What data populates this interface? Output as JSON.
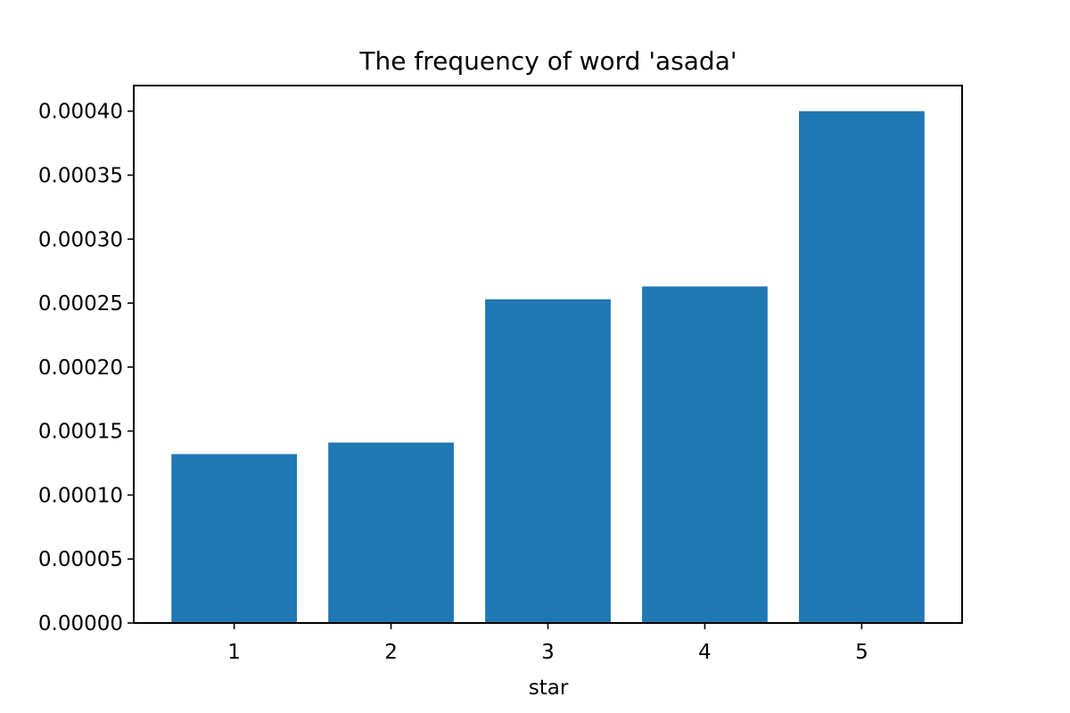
{
  "chart_data": {
    "type": "bar",
    "title": "The frequency of word 'asada'",
    "xlabel": "star",
    "ylabel": "",
    "categories": [
      "1",
      "2",
      "3",
      "4",
      "5"
    ],
    "values": [
      0.000132,
      0.000141,
      0.000253,
      0.000263,
      0.0004
    ],
    "ylim": [
      0,
      0.00042
    ],
    "yticks": [
      "0.00000",
      "0.00005",
      "0.00010",
      "0.00015",
      "0.00020",
      "0.00025",
      "0.00030",
      "0.00035",
      "0.00040"
    ],
    "ytick_values": [
      0,
      5e-05,
      0.0001,
      0.00015,
      0.0002,
      0.00025,
      0.0003,
      0.00035,
      0.0004
    ],
    "bar_color": "#1f77b4",
    "grid": false,
    "legend": "none"
  }
}
